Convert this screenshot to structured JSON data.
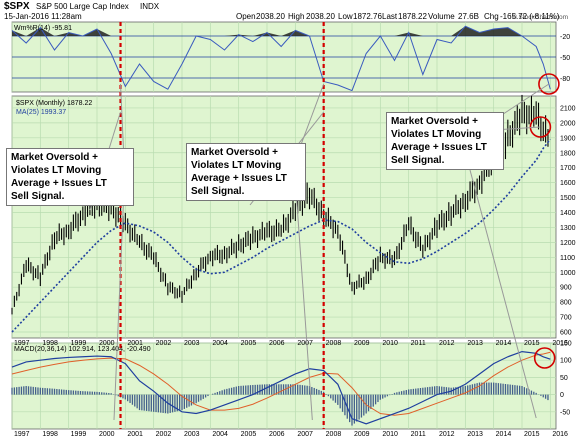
{
  "header": {
    "symbol": "$SPX",
    "name": "S&P 500 Large Cap Index",
    "exchange": "INDX",
    "date": "15-Jan-2016 11:28am",
    "open_label": "Open",
    "open": "2038.20",
    "high_label": "High",
    "high": "2038.20",
    "low_label": "Low",
    "low": "1872.76",
    "last_label": "Last",
    "last": "1878.22",
    "volume_label": "Volume",
    "volume": "27.6B",
    "chg_label": "Chg",
    "chg": "-165.72 (-8.11%)",
    "watermark": "© StockCharts.com"
  },
  "colors": {
    "panel_bg": "#dff5d0",
    "grid": "#b9dcb0",
    "willr_line": "#3a5bbf",
    "ma_line": "#1f3f9f",
    "macd_line": "#1f3f9f",
    "signal_line": "#e0602a",
    "histogram": "#44608c",
    "vline": "#d40000",
    "circle": "#d40000",
    "callout_line": "#999999"
  },
  "annotations": [
    "Market Oversold +\nViolates LT Moving\nAverage + Issues LT\nSell Signal.",
    "Market Oversold +\nViolates LT Moving\nAverage + Issues LT\nSell Signal.",
    "Market Oversold +\nViolates LT Moving\nAverage + Issues LT\nSell Signal."
  ],
  "chart_data": [
    {
      "type": "area",
      "legend": "Wm%R(14) -95.81",
      "ylim": [
        -100,
        0
      ],
      "y_ticks": [
        -20,
        -50,
        -80
      ],
      "x": [
        1997.0,
        1997.5,
        1998.0,
        1998.5,
        1999.0,
        1999.5,
        2000.0,
        2000.5,
        2001.0,
        2001.5,
        2002.0,
        2002.5,
        2003.0,
        2003.5,
        2004.0,
        2004.5,
        2005.0,
        2005.5,
        2006.0,
        2006.5,
        2007.0,
        2007.5,
        2008.0,
        2008.5,
        2009.0,
        2009.5,
        2010.0,
        2010.5,
        2011.0,
        2011.5,
        2012.0,
        2012.5,
        2013.0,
        2013.5,
        2014.0,
        2014.5,
        2015.0,
        2015.5,
        2015.75,
        2016.0
      ],
      "values": [
        -12,
        -30,
        -8,
        -40,
        -15,
        -20,
        -10,
        -45,
        -92,
        -60,
        -85,
        -96,
        -60,
        -20,
        -25,
        -40,
        -18,
        -28,
        -15,
        -35,
        -12,
        -20,
        -85,
        -90,
        -98,
        -45,
        -20,
        -55,
        -15,
        -75,
        -25,
        -30,
        -6,
        -15,
        -10,
        -8,
        -20,
        -35,
        -60,
        -96
      ]
    },
    {
      "type": "line",
      "title": "$SPX (Monthly) 1878.22",
      "series": [
        {
          "name": "$SPX (Monthly) 1878.22",
          "values": [
            740,
            1050,
            970,
            1230,
            1280,
            1390,
            1460,
            1430,
            1320,
            1200,
            1100,
            900,
            850,
            1000,
            1110,
            1120,
            1180,
            1230,
            1270,
            1280,
            1420,
            1520,
            1380,
            1280,
            900,
            950,
            1100,
            1080,
            1320,
            1150,
            1310,
            1400,
            1480,
            1600,
            1780,
            1900,
            2060,
            2050,
            1950,
            1878
          ]
        },
        {
          "name": "MA(25) 1993.37",
          "values": [
            600,
            700,
            800,
            900,
            1000,
            1100,
            1200,
            1280,
            1330,
            1310,
            1270,
            1200,
            1100,
            1020,
            990,
            1000,
            1050,
            1100,
            1160,
            1210,
            1260,
            1310,
            1350,
            1340,
            1290,
            1200,
            1130,
            1070,
            1060,
            1090,
            1140,
            1200,
            1260,
            1330,
            1420,
            1520,
            1640,
            1750,
            1830,
            1890
          ]
        }
      ],
      "x": [
        1997.0,
        1997.5,
        1998.0,
        1998.5,
        1999.0,
        1999.5,
        2000.0,
        2000.5,
        2001.0,
        2001.5,
        2002.0,
        2002.5,
        2003.0,
        2003.5,
        2004.0,
        2004.5,
        2005.0,
        2005.5,
        2006.0,
        2006.5,
        2007.0,
        2007.5,
        2008.0,
        2008.5,
        2009.0,
        2009.5,
        2010.0,
        2010.5,
        2011.0,
        2011.5,
        2012.0,
        2012.5,
        2013.0,
        2013.5,
        2014.0,
        2014.5,
        2015.0,
        2015.5,
        2015.75,
        2016.0
      ],
      "ylim": [
        560,
        2180
      ],
      "y_ticks": [
        600,
        700,
        800,
        900,
        1000,
        1100,
        1200,
        1300,
        1400,
        1500,
        1600,
        1700,
        1800,
        1900,
        2000,
        2100
      ],
      "x_ticks": [
        "1997",
        "1998",
        "1999",
        "2000",
        "2001",
        "2002",
        "2003",
        "2004",
        "2005",
        "2006",
        "2007",
        "2008",
        "2009",
        "2010",
        "2011",
        "2012",
        "2013",
        "2014",
        "2015",
        "2016"
      ]
    },
    {
      "type": "line",
      "title": "MACD(20,36,14) 102.914, 123.404, -20.490",
      "series": [
        {
          "name": "MACD",
          "values": [
            80,
            95,
            100,
            105,
            108,
            110,
            112,
            110,
            90,
            40,
            10,
            -25,
            -50,
            -55,
            -45,
            -30,
            -15,
            0,
            20,
            40,
            60,
            75,
            70,
            30,
            -70,
            -85,
            -70,
            -55,
            -40,
            -20,
            0,
            10,
            30,
            60,
            90,
            110,
            125,
            120,
            110,
            103
          ]
        },
        {
          "name": "Signal",
          "values": [
            60,
            70,
            80,
            88,
            95,
            100,
            104,
            106,
            104,
            85,
            60,
            30,
            -5,
            -30,
            -45,
            -45,
            -40,
            -28,
            -10,
            10,
            30,
            50,
            62,
            60,
            20,
            -30,
            -55,
            -60,
            -55,
            -40,
            -25,
            -10,
            5,
            25,
            55,
            80,
            100,
            115,
            118,
            123
          ]
        }
      ],
      "x": [
        1997.0,
        1997.5,
        1998.0,
        1998.5,
        1999.0,
        1999.5,
        2000.0,
        2000.5,
        2001.0,
        2001.5,
        2002.0,
        2002.5,
        2003.0,
        2003.5,
        2004.0,
        2004.5,
        2005.0,
        2005.5,
        2006.0,
        2006.5,
        2007.0,
        2007.5,
        2008.0,
        2008.5,
        2009.0,
        2009.5,
        2010.0,
        2010.5,
        2011.0,
        2011.5,
        2012.0,
        2012.5,
        2013.0,
        2013.5,
        2014.0,
        2014.5,
        2015.0,
        2015.5,
        2015.75,
        2016.0
      ],
      "ylim": [
        -100,
        150
      ],
      "y_ticks": [
        150,
        100,
        50,
        0,
        -50
      ],
      "x_ticks": [
        "1997",
        "1998",
        "1999",
        "2000",
        "2001",
        "2002",
        "2003",
        "2004",
        "2005",
        "2006",
        "2007",
        "2008",
        "2009",
        "2010",
        "2011",
        "2012",
        "2013",
        "2014",
        "2015",
        "2016"
      ]
    }
  ]
}
